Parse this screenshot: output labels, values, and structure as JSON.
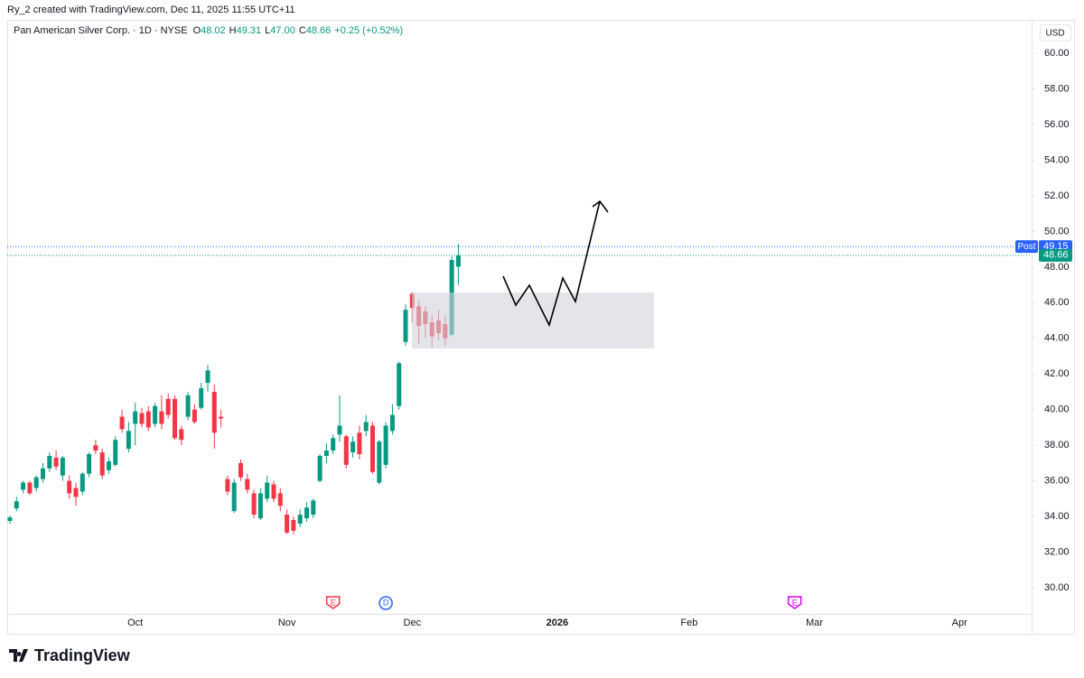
{
  "header": {
    "author_line": "Ry_2 created with TradingView.com, Dec 11, 2025 11:55 UTC+11",
    "symbol": "Pan American Silver Corp. · 1D · NYSE",
    "ohlc": [
      {
        "label": "O",
        "value": "48.02"
      },
      {
        "label": "H",
        "value": "49.31"
      },
      {
        "label": "L",
        "value": "47.00"
      },
      {
        "label": "C",
        "value": "48.66"
      }
    ],
    "change": "+0.25 (+0.52%)",
    "currency": "USD"
  },
  "chart_data": {
    "type": "candlestick",
    "up_color": "#089981",
    "down_color": "#f23645",
    "xlim": [
      -0.41,
      154.93
    ],
    "xticks": [
      {
        "value": 19,
        "label": "Oct"
      },
      {
        "value": 42,
        "label": "Nov"
      },
      {
        "value": 61,
        "label": "Dec"
      },
      {
        "value": 83,
        "label": "2026"
      },
      {
        "value": 103,
        "label": "Feb"
      },
      {
        "value": 122,
        "label": "Mar"
      },
      {
        "value": 144,
        "label": "Apr"
      }
    ],
    "ylim": [
      28.53,
      61.88
    ],
    "yticks": [
      {
        "value": 30,
        "label": "30.00"
      },
      {
        "value": 32,
        "label": "32.00"
      },
      {
        "value": 34,
        "label": "34.00"
      },
      {
        "value": 36,
        "label": "36.00"
      },
      {
        "value": 38,
        "label": "38.00"
      },
      {
        "value": 40,
        "label": "40.00"
      },
      {
        "value": 42,
        "label": "42.00"
      },
      {
        "value": 44,
        "label": "44.00"
      },
      {
        "value": 46,
        "label": "46.00"
      },
      {
        "value": 48,
        "label": "48.00"
      },
      {
        "value": 50,
        "label": "50.00"
      },
      {
        "value": 52,
        "label": "52.00"
      },
      {
        "value": 54,
        "label": "54.00"
      },
      {
        "value": 56,
        "label": "56.00"
      },
      {
        "value": 58,
        "label": "58.00"
      },
      {
        "value": 60,
        "label": "60.00"
      }
    ],
    "candles": {
      "open": [
        33.75,
        34.45,
        35.5,
        35.9,
        35.6,
        36.1,
        36.7,
        37.3,
        36.3,
        36.0,
        35.6,
        35.4,
        36.4,
        38.0,
        37.6,
        36.6,
        36.9,
        39.6,
        37.8,
        39.2,
        39.8,
        39.9,
        39.2,
        39.9,
        40.6,
        40.6,
        38.9,
        39.6,
        40.0,
        40.1,
        41.5,
        41.0,
        39.6,
        36.1,
        34.3,
        37.0,
        36.1,
        35.3,
        33.9,
        35.0,
        35.8,
        35.3,
        34.1,
        33.8,
        33.6,
        33.9,
        34.1,
        36.0,
        37.4,
        37.7,
        38.6,
        38.5,
        37.6,
        38.7,
        38.8,
        39.1,
        35.9,
        36.9,
        38.8,
        40.2,
        43.8,
        46.5,
        45.8,
        45.5,
        44.9,
        45.0,
        44.8,
        44.2,
        48.02
      ],
      "high": [
        34.05,
        35.1,
        36.0,
        36.0,
        36.3,
        37.0,
        37.6,
        37.7,
        37.4,
        36.3,
        35.9,
        36.5,
        37.6,
        38.3,
        37.8,
        37.3,
        38.5,
        40.0,
        39.3,
        40.4,
        40.1,
        40.2,
        40.4,
        40.8,
        40.9,
        40.8,
        39.1,
        41.0,
        40.3,
        41.5,
        42.5,
        41.4,
        40.0,
        36.3,
        36.1,
        37.2,
        36.4,
        35.5,
        35.6,
        36.3,
        36.0,
        35.6,
        34.4,
        34.0,
        34.4,
        34.8,
        35.0,
        37.5,
        38.1,
        38.6,
        40.8,
        38.6,
        38.5,
        39.1,
        39.7,
        39.3,
        38.3,
        39.3,
        40.3,
        42.7,
        45.9,
        46.6,
        46.1,
        45.8,
        45.3,
        45.6,
        45.3,
        48.6,
        49.31
      ],
      "low": [
        33.6,
        34.3,
        35.3,
        35.2,
        35.4,
        35.9,
        36.5,
        36.6,
        36.0,
        35.0,
        34.6,
        35.2,
        36.2,
        37.5,
        36.1,
        36.4,
        36.8,
        38.7,
        37.6,
        38.0,
        39.0,
        38.8,
        39.0,
        38.9,
        39.5,
        38.3,
        38.0,
        39.4,
        39.2,
        40.0,
        41.0,
        37.8,
        39.0,
        35.2,
        34.2,
        36.0,
        35.3,
        33.9,
        33.8,
        34.8,
        34.8,
        34.3,
        33.0,
        33.0,
        33.4,
        33.7,
        33.9,
        35.9,
        37.0,
        37.5,
        38.2,
        36.7,
        37.3,
        37.2,
        38.5,
        36.4,
        35.8,
        36.7,
        38.6,
        40.0,
        43.6,
        44.9,
        43.7,
        44.0,
        43.5,
        43.9,
        43.6,
        44.1,
        47.0
      ],
      "close": [
        33.95,
        34.85,
        35.9,
        35.3,
        36.2,
        36.7,
        37.4,
        36.8,
        37.3,
        35.3,
        35.1,
        36.4,
        37.5,
        37.7,
        36.3,
        37.1,
        38.3,
        38.9,
        38.8,
        39.9,
        39.2,
        39.0,
        40.2,
        39.2,
        39.7,
        38.4,
        38.3,
        40.8,
        39.3,
        41.2,
        42.2,
        38.7,
        39.5,
        35.4,
        35.9,
        36.2,
        35.5,
        34.1,
        35.3,
        35.9,
        35.0,
        34.6,
        33.1,
        33.2,
        34.1,
        34.5,
        34.9,
        37.4,
        37.7,
        38.4,
        39.1,
        36.9,
        38.2,
        37.5,
        39.3,
        36.5,
        38.2,
        39.1,
        39.7,
        42.6,
        45.6,
        45.7,
        44.7,
        44.8,
        44.1,
        44.3,
        44.0,
        48.4,
        48.66
      ]
    },
    "price_lines": [
      {
        "label": "Post",
        "value": 49.15,
        "color": "#2962ff"
      },
      {
        "value": 48.66,
        "color": "#089981"
      }
    ],
    "events": [
      {
        "label": "E",
        "x": 49,
        "color": "#f23645"
      },
      {
        "label": "D",
        "x": 57,
        "color": "#2962ff"
      },
      {
        "label": "E",
        "x": 119,
        "color": "#d500f9"
      }
    ]
  },
  "footer": {
    "brand": "TradingView"
  }
}
